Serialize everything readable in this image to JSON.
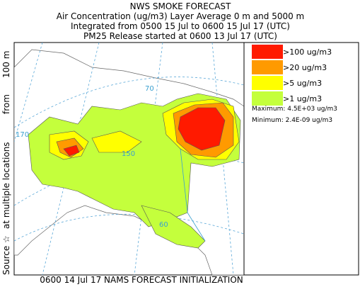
{
  "header": {
    "title": "NWS SMOKE FORECAST",
    "lines": [
      "Air Concentration (ug/m3) Layer Average    0 m and  5000 m",
      "Integrated from 0500 15 Jul to 0600 15 Jul 17 (UTC)",
      "PM25 Release started at 0600 13 Jul 17 (UTC)"
    ]
  },
  "legend": {
    "items": [
      {
        "label": ">100 ug/m3",
        "color": "#ff1a00"
      },
      {
        "label": ">20 ug/m3",
        "color": "#ff9a00"
      },
      {
        "label": ">5 ug/m3",
        "color": "#ffff00"
      },
      {
        "label": ">1 ug/m3",
        "color": "#c4ff3c"
      }
    ],
    "maximum": "Maximum: 4.5E+03 ug/m3",
    "minimum": "Minimum: 2.4E-09 ug/m3"
  },
  "source_label": {
    "parts": [
      "Source ☆",
      "at multiple locations",
      "from",
      "100 m"
    ]
  },
  "footer": "0600 14 Jul 17 NAMS FORECAST INITIALIZATION",
  "map": {
    "grid_labels": [
      "70",
      "170",
      "150",
      "60"
    ]
  }
}
